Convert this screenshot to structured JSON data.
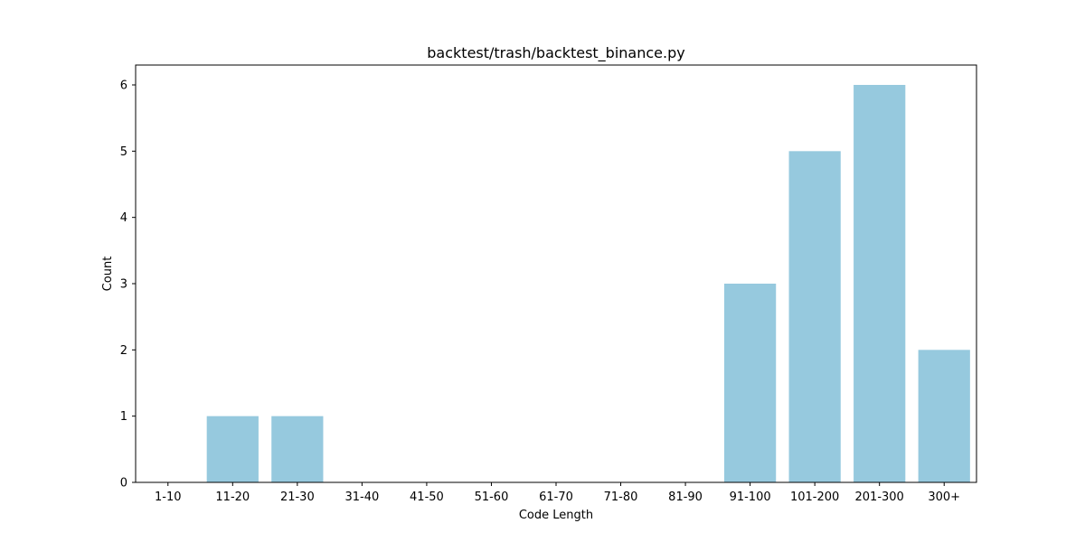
{
  "chart_data": {
    "type": "bar",
    "title": "backtest/trash/backtest_binance.py",
    "xlabel": "Code Length",
    "ylabel": "Count",
    "categories": [
      "1-10",
      "11-20",
      "21-30",
      "31-40",
      "41-50",
      "51-60",
      "61-70",
      "71-80",
      "81-90",
      "91-100",
      "101-200",
      "201-300",
      "300+"
    ],
    "values": [
      0,
      1,
      1,
      0,
      0,
      0,
      0,
      0,
      0,
      3,
      5,
      6,
      2
    ],
    "ylim": [
      0,
      6.3
    ],
    "yticks": [
      0,
      1,
      2,
      3,
      4,
      5,
      6
    ],
    "bar_color": "#96c9de",
    "grid": false,
    "legend": "none"
  }
}
